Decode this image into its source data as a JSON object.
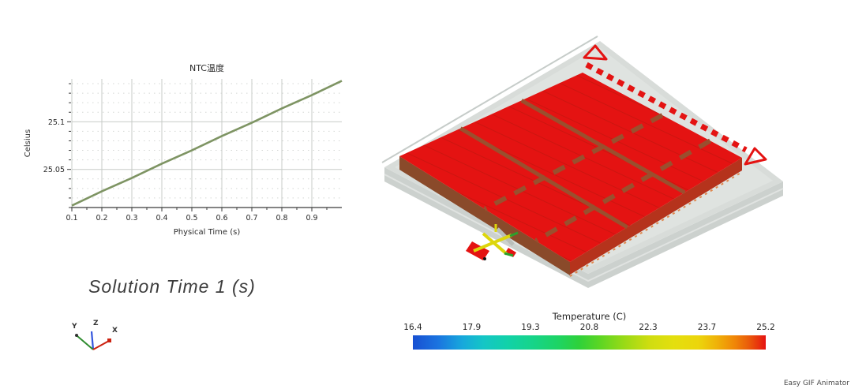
{
  "frame": {
    "background": "#ffffff",
    "watermark_text": "Easy GIF Animator"
  },
  "chart_data": {
    "type": "line",
    "title": "NTC温度",
    "xlabel": "Physical Time (s)",
    "ylabel": "Celsius",
    "x": [
      0.1,
      0.2,
      0.3,
      0.4,
      0.5,
      0.6,
      0.7,
      0.8,
      0.9,
      1.0
    ],
    "y": [
      25.012,
      25.027,
      25.041,
      25.056,
      25.07,
      25.085,
      25.099,
      25.114,
      25.128,
      25.143
    ],
    "xlim": [
      0.1,
      1.0
    ],
    "ylim": [
      25.01,
      25.145
    ],
    "x_tick_values": [
      0.1,
      0.2,
      0.3,
      0.4,
      0.5,
      0.6,
      0.7,
      0.8,
      0.9
    ],
    "x_tick_labels": [
      "0.1",
      "0.2",
      "0.3",
      "0.4",
      "0.5",
      "0.6",
      "0.7",
      "0.8",
      "0.9"
    ],
    "y_tick_values": [
      25.05,
      25.1
    ],
    "y_tick_labels": [
      "25.05",
      "25.1"
    ],
    "x_minor_step": 0.05,
    "y_minor_step": 0.01,
    "line_color": "#7e9463",
    "grid": true,
    "legend_position": "none"
  },
  "solution_time_label": "Solution Time 1 (s)",
  "axis_triad": {
    "x": {
      "label": "X",
      "color": "#cc2211"
    },
    "y": {
      "label": "Y",
      "color": "#2e8b2e"
    },
    "z": {
      "label": "Z",
      "color": "#3355dd"
    }
  },
  "temperature_legend": {
    "title": "Temperature (C)",
    "tick_labels": [
      "16.4",
      "17.9",
      "19.3",
      "20.8",
      "22.3",
      "23.7",
      "25.2"
    ],
    "min": 16.4,
    "max": 25.2,
    "gradient_stops": [
      [
        "0",
        "#1850d2"
      ],
      [
        "7",
        "#1a73e0"
      ],
      [
        "14",
        "#17a8dc"
      ],
      [
        "20",
        "#14c6c6"
      ],
      [
        "27",
        "#12d2a8"
      ],
      [
        "34",
        "#16d489"
      ],
      [
        "41",
        "#1dd465"
      ],
      [
        "47",
        "#2ed13b"
      ],
      [
        "53",
        "#5cd623"
      ],
      [
        "60",
        "#9ada16"
      ],
      [
        "67",
        "#cfdd10"
      ],
      [
        "74",
        "#e4df0e"
      ],
      [
        "81",
        "#ecd50c"
      ],
      [
        "86",
        "#efb309"
      ],
      [
        "91",
        "#f08807"
      ],
      [
        "95",
        "#ea5e0a"
      ],
      [
        "98",
        "#e8320e"
      ],
      [
        "100",
        "#e51212"
      ]
    ]
  },
  "scene": {
    "name": "battery-pack-thermal-view",
    "colors": {
      "surface": "#e41312",
      "side_left": "#8a4a2a",
      "side_right": "#b5331c",
      "tray": "#d8dcd9",
      "tray_inner": "#dfe3e0",
      "tray_side": "#ccd1ce",
      "divider": "#9a4f2e",
      "bracket": "#e41312",
      "fitting_yellow": "#ddd60c",
      "fitting_green": "#2ca02c",
      "fitting_gray": "#b9beba"
    }
  }
}
